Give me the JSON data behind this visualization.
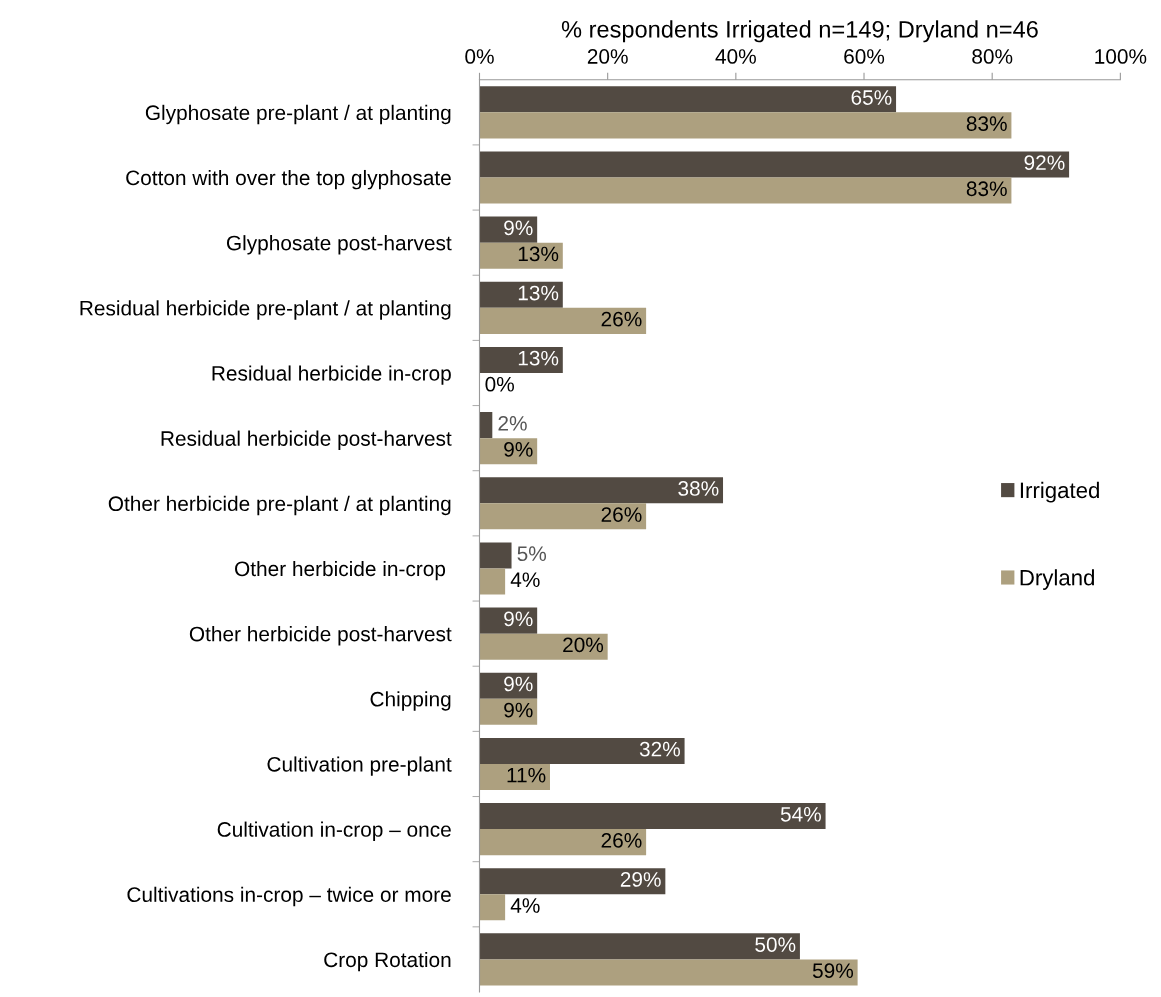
{
  "chart_data": {
    "type": "bar",
    "orientation": "horizontal",
    "xlabel": "% respondents Irrigated n=149; Dryland n=46",
    "categories": [
      "Glyphosate pre-plant / at planting",
      "Cotton with over the top glyphosate",
      "Glyphosate post-harvest",
      "Residual herbicide pre-plant / at planting",
      "Residual herbicide in-crop",
      "Residual herbicide post-harvest",
      "Other herbicide pre-plant / at planting",
      "Other herbicide in-crop ",
      "Other herbicide post-harvest",
      "Chipping",
      "Cultivation pre-plant",
      "Cultivation in-crop – once",
      "Cultivations in-crop – twice or more",
      "Crop Rotation"
    ],
    "series": [
      {
        "name": "Irrigated",
        "color": "#524a42",
        "values": [
          65,
          92,
          9,
          13,
          13,
          2,
          38,
          5,
          9,
          9,
          32,
          54,
          29,
          50
        ],
        "value_labels": [
          "65%",
          "92%",
          "9%",
          "13%",
          "13%",
          "2%",
          "38%",
          "5%",
          "9%",
          "9%",
          "32%",
          "54%",
          "29%",
          "50%"
        ]
      },
      {
        "name": "Dryland",
        "color": "#ada07f",
        "values": [
          83,
          83,
          13,
          26,
          0,
          9,
          26,
          4,
          20,
          9,
          11,
          26,
          4,
          59
        ],
        "value_labels": [
          "83%",
          "83%",
          "13%",
          "26%",
          "0%",
          "9%",
          "26%",
          "4%",
          "20%",
          "9%",
          "11%",
          "26%",
          "4%",
          "59%"
        ]
      }
    ],
    "xlim": [
      0,
      100
    ],
    "xticks": [
      {
        "value": 0,
        "label": "0%"
      },
      {
        "value": 20,
        "label": "20%"
      },
      {
        "value": 40,
        "label": "40%"
      },
      {
        "value": 60,
        "label": "60%"
      },
      {
        "value": 80,
        "label": "80%"
      },
      {
        "value": 100,
        "label": "100%"
      }
    ],
    "grid": false,
    "legend": "right"
  }
}
